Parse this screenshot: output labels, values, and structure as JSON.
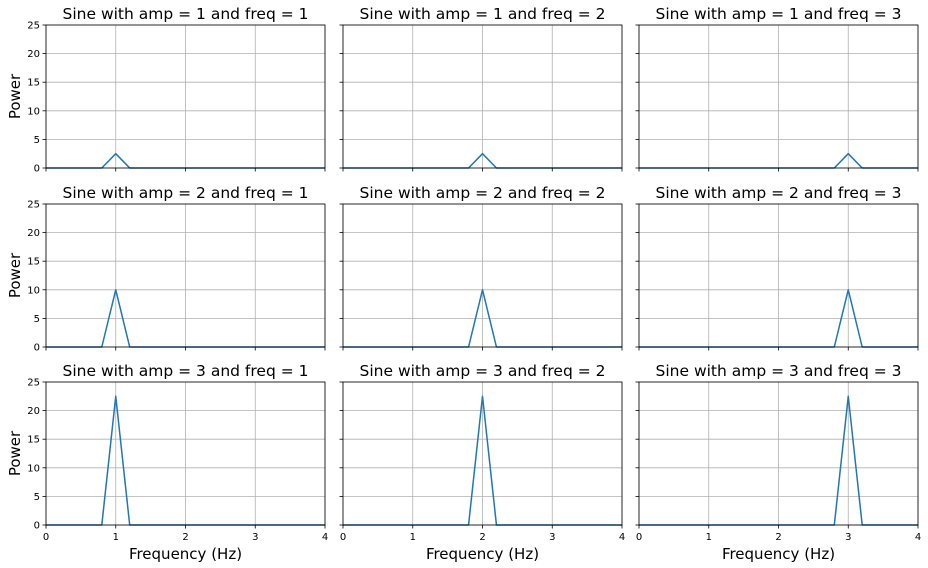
{
  "chart_data": [
    {
      "type": "line",
      "title": "Sine with amp = 1 and freq = 1",
      "x": [
        0,
        0.2,
        0.4,
        0.6,
        0.8,
        1.0,
        1.2,
        1.4,
        1.6,
        1.8,
        2.0,
        2.2,
        2.4,
        2.6,
        2.8,
        3.0,
        3.2,
        3.4,
        3.6,
        3.8,
        4.0
      ],
      "values": [
        0,
        0,
        0,
        0,
        0,
        2.5,
        0,
        0,
        0,
        0,
        0,
        0,
        0,
        0,
        0,
        0,
        0,
        0,
        0,
        0,
        0
      ],
      "xlabel": "",
      "ylabel": "Power",
      "xlim": [
        0,
        4
      ],
      "ylim": [
        0,
        25
      ],
      "grid": true
    },
    {
      "type": "line",
      "title": "Sine with amp = 1 and freq = 2",
      "x": [
        0,
        0.2,
        0.4,
        0.6,
        0.8,
        1.0,
        1.2,
        1.4,
        1.6,
        1.8,
        2.0,
        2.2,
        2.4,
        2.6,
        2.8,
        3.0,
        3.2,
        3.4,
        3.6,
        3.8,
        4.0
      ],
      "values": [
        0,
        0,
        0,
        0,
        0,
        0,
        0,
        0,
        0,
        0,
        2.5,
        0,
        0,
        0,
        0,
        0,
        0,
        0,
        0,
        0,
        0
      ],
      "xlabel": "",
      "ylabel": "",
      "xlim": [
        0,
        4
      ],
      "ylim": [
        0,
        25
      ],
      "grid": true
    },
    {
      "type": "line",
      "title": "Sine with amp = 1 and freq = 3",
      "x": [
        0,
        0.2,
        0.4,
        0.6,
        0.8,
        1.0,
        1.2,
        1.4,
        1.6,
        1.8,
        2.0,
        2.2,
        2.4,
        2.6,
        2.8,
        3.0,
        3.2,
        3.4,
        3.6,
        3.8,
        4.0
      ],
      "values": [
        0,
        0,
        0,
        0,
        0,
        0,
        0,
        0,
        0,
        0,
        0,
        0,
        0,
        0,
        0,
        2.5,
        0,
        0,
        0,
        0,
        0
      ],
      "xlabel": "",
      "ylabel": "",
      "xlim": [
        0,
        4
      ],
      "ylim": [
        0,
        25
      ],
      "grid": true
    },
    {
      "type": "line",
      "title": "Sine with amp = 2 and freq = 1",
      "x": [
        0,
        0.2,
        0.4,
        0.6,
        0.8,
        1.0,
        1.2,
        1.4,
        1.6,
        1.8,
        2.0,
        2.2,
        2.4,
        2.6,
        2.8,
        3.0,
        3.2,
        3.4,
        3.6,
        3.8,
        4.0
      ],
      "values": [
        0,
        0,
        0,
        0,
        0,
        10,
        0,
        0,
        0,
        0,
        0,
        0,
        0,
        0,
        0,
        0,
        0,
        0,
        0,
        0,
        0
      ],
      "xlabel": "",
      "ylabel": "Power",
      "xlim": [
        0,
        4
      ],
      "ylim": [
        0,
        25
      ],
      "grid": true
    },
    {
      "type": "line",
      "title": "Sine with amp = 2 and freq = 2",
      "x": [
        0,
        0.2,
        0.4,
        0.6,
        0.8,
        1.0,
        1.2,
        1.4,
        1.6,
        1.8,
        2.0,
        2.2,
        2.4,
        2.6,
        2.8,
        3.0,
        3.2,
        3.4,
        3.6,
        3.8,
        4.0
      ],
      "values": [
        0,
        0,
        0,
        0,
        0,
        0,
        0,
        0,
        0,
        0,
        10,
        0,
        0,
        0,
        0,
        0,
        0,
        0,
        0,
        0,
        0
      ],
      "xlabel": "",
      "ylabel": "",
      "xlim": [
        0,
        4
      ],
      "ylim": [
        0,
        25
      ],
      "grid": true
    },
    {
      "type": "line",
      "title": "Sine with amp = 2 and freq = 3",
      "x": [
        0,
        0.2,
        0.4,
        0.6,
        0.8,
        1.0,
        1.2,
        1.4,
        1.6,
        1.8,
        2.0,
        2.2,
        2.4,
        2.6,
        2.8,
        3.0,
        3.2,
        3.4,
        3.6,
        3.8,
        4.0
      ],
      "values": [
        0,
        0,
        0,
        0,
        0,
        0,
        0,
        0,
        0,
        0,
        0,
        0,
        0,
        0,
        0,
        10,
        0,
        0,
        0,
        0,
        0
      ],
      "xlabel": "",
      "ylabel": "",
      "xlim": [
        0,
        4
      ],
      "ylim": [
        0,
        25
      ],
      "grid": true
    },
    {
      "type": "line",
      "title": "Sine with amp = 3 and freq = 1",
      "x": [
        0,
        0.2,
        0.4,
        0.6,
        0.8,
        1.0,
        1.2,
        1.4,
        1.6,
        1.8,
        2.0,
        2.2,
        2.4,
        2.6,
        2.8,
        3.0,
        3.2,
        3.4,
        3.6,
        3.8,
        4.0
      ],
      "values": [
        0,
        0,
        0,
        0,
        0,
        22.5,
        0,
        0,
        0,
        0,
        0,
        0,
        0,
        0,
        0,
        0,
        0,
        0,
        0,
        0,
        0
      ],
      "xlabel": "Frequency (Hz)",
      "ylabel": "Power",
      "xlim": [
        0,
        4
      ],
      "ylim": [
        0,
        25
      ],
      "grid": true
    },
    {
      "type": "line",
      "title": "Sine with amp = 3 and freq = 2",
      "x": [
        0,
        0.2,
        0.4,
        0.6,
        0.8,
        1.0,
        1.2,
        1.4,
        1.6,
        1.8,
        2.0,
        2.2,
        2.4,
        2.6,
        2.8,
        3.0,
        3.2,
        3.4,
        3.6,
        3.8,
        4.0
      ],
      "values": [
        0,
        0,
        0,
        0,
        0,
        0,
        0,
        0,
        0,
        0,
        22.5,
        0,
        0,
        0,
        0,
        0,
        0,
        0,
        0,
        0,
        0
      ],
      "xlabel": "Frequency (Hz)",
      "ylabel": "",
      "xlim": [
        0,
        4
      ],
      "ylim": [
        0,
        25
      ],
      "grid": true
    },
    {
      "type": "line",
      "title": "Sine with amp = 3 and freq = 3",
      "x": [
        0,
        0.2,
        0.4,
        0.6,
        0.8,
        1.0,
        1.2,
        1.4,
        1.6,
        1.8,
        2.0,
        2.2,
        2.4,
        2.6,
        2.8,
        3.0,
        3.2,
        3.4,
        3.6,
        3.8,
        4.0
      ],
      "values": [
        0,
        0,
        0,
        0,
        0,
        0,
        0,
        0,
        0,
        0,
        0,
        0,
        0,
        0,
        0,
        22.5,
        0,
        0,
        0,
        0,
        0
      ],
      "xlabel": "Frequency (Hz)",
      "ylabel": "",
      "xlim": [
        0,
        4
      ],
      "ylim": [
        0,
        25
      ],
      "grid": true
    }
  ],
  "x_ticks": [
    "0",
    "1",
    "2",
    "3",
    "4"
  ],
  "y_ticks": [
    "0",
    "5",
    "10",
    "15",
    "20",
    "25"
  ],
  "colors": {
    "series": "#1f77b4",
    "grid": "#b0b0b0",
    "frame": "#000000"
  }
}
